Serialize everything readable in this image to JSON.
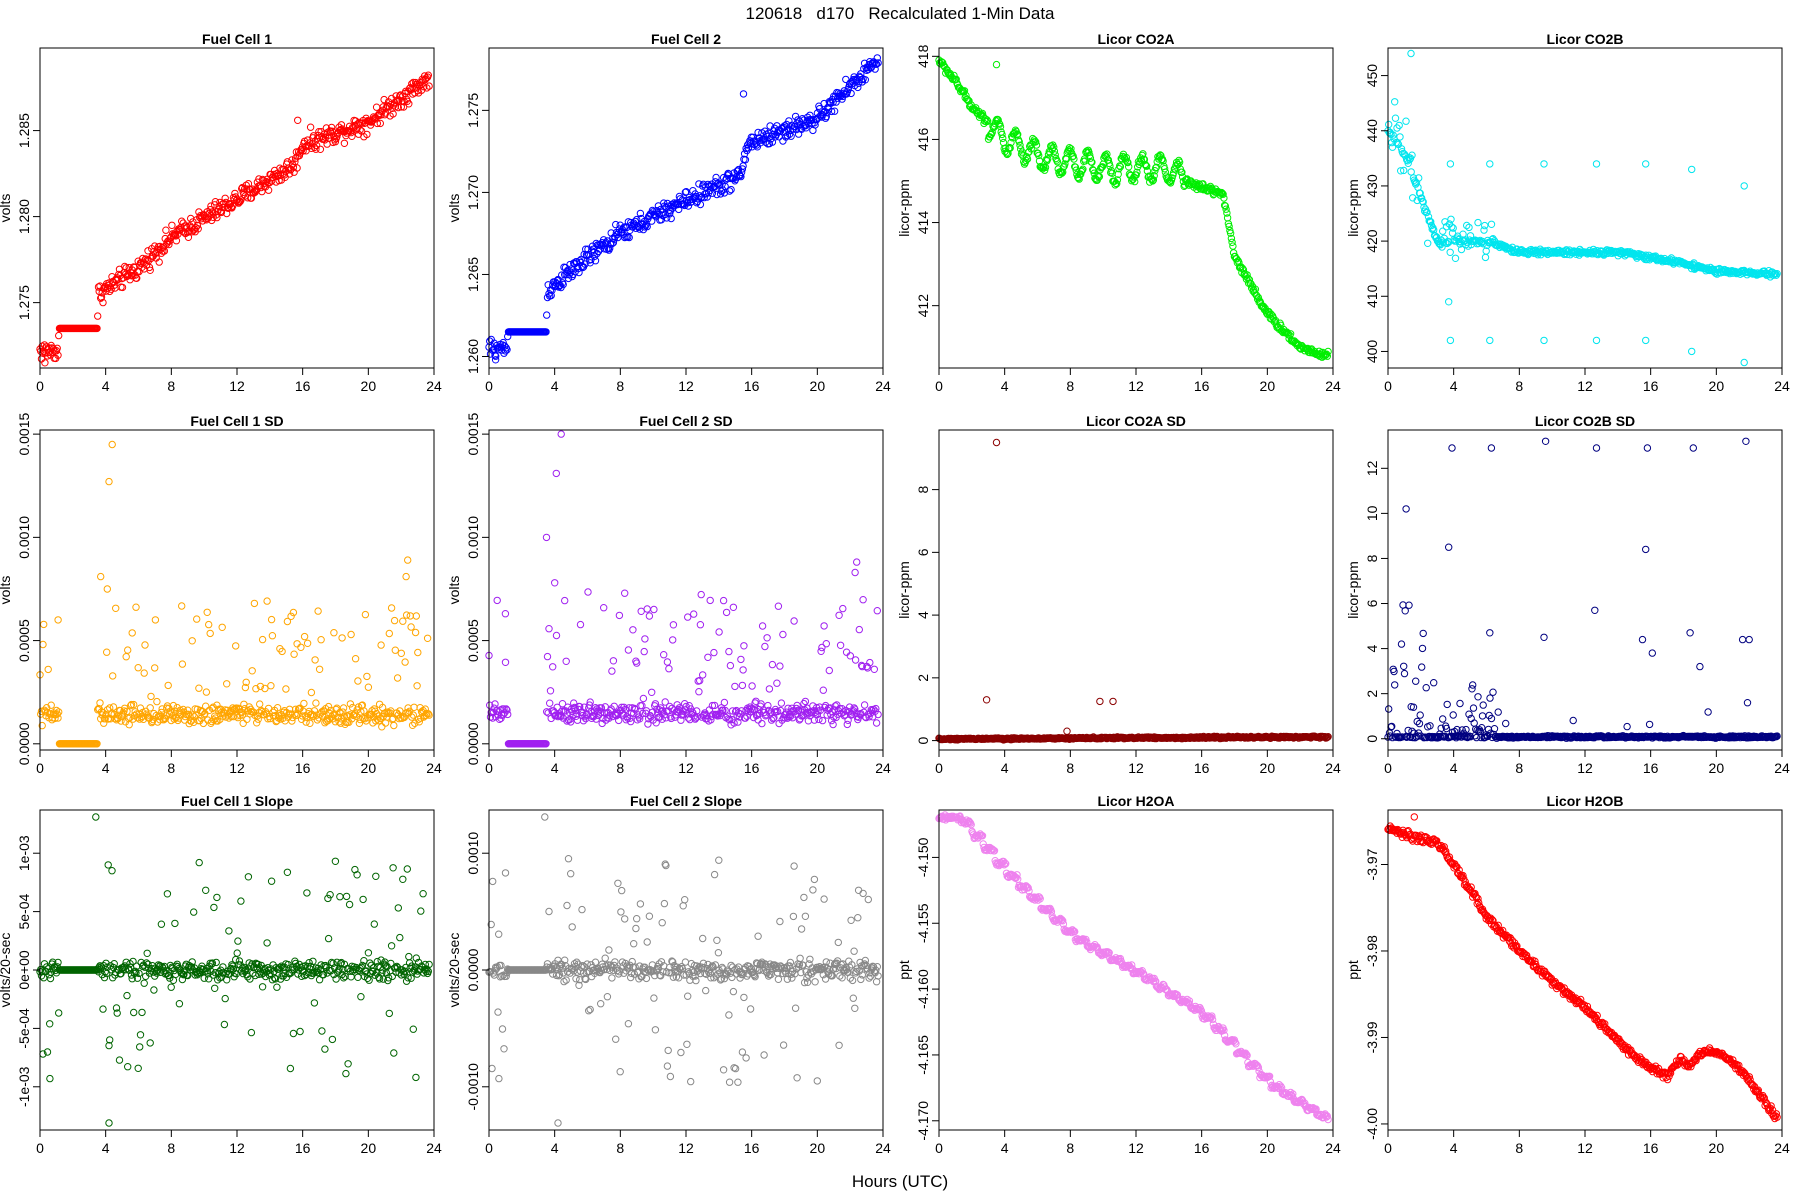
{
  "figure": {
    "title": "120618   d170   Recalculated 1-Min Data",
    "xlabel": "Hours (UTC)"
  },
  "chart_data": [
    {
      "id": "fc1",
      "type": "scatter",
      "title": "Fuel Cell 1",
      "ylabel": "volts",
      "color": "#ff0000",
      "xlim": [
        0,
        24
      ],
      "ylim": [
        1.2712,
        1.2898
      ],
      "xticks": [
        0,
        4,
        8,
        12,
        16,
        20,
        24
      ],
      "xtick_labels": [
        "0",
        "4",
        "8",
        "12",
        "16",
        "20",
        "24"
      ],
      "yticks": [
        1.275,
        1.28,
        1.285
      ],
      "ytick_labels": [
        "1.275",
        "1.280",
        "1.285"
      ],
      "gen": {
        "mode": "series",
        "noise": 0.0005,
        "knots": [
          [
            0,
            1.2722
          ],
          [
            1.1,
            1.2722
          ],
          [
            1.15,
            1.2735
          ],
          [
            3.5,
            1.2735
          ],
          [
            3.55,
            1.2755
          ],
          [
            6,
            1.277
          ],
          [
            8,
            1.2788
          ],
          [
            12,
            1.281
          ],
          [
            15.5,
            1.283
          ],
          [
            16,
            1.2842
          ],
          [
            20,
            1.2855
          ],
          [
            23.6,
            1.288
          ]
        ],
        "flat": [
          [
            1.15,
            3.5,
            1.2735
          ]
        ],
        "outliers": [
          [
            15.7,
            1.2856
          ],
          [
            0.3,
            1.2715
          ]
        ]
      }
    },
    {
      "id": "fc2",
      "type": "scatter",
      "title": "Fuel Cell 2",
      "ylabel": "volts",
      "color": "#0000ff",
      "xlim": [
        0,
        24
      ],
      "ylim": [
        1.2593,
        1.2788
      ],
      "xticks": [
        0,
        4,
        8,
        12,
        16,
        20,
        24
      ],
      "xtick_labels": [
        "0",
        "4",
        "8",
        "12",
        "16",
        "20",
        "24"
      ],
      "yticks": [
        1.26,
        1.265,
        1.27,
        1.275
      ],
      "ytick_labels": [
        "1.260",
        "1.265",
        "1.270",
        "1.275"
      ],
      "gen": {
        "mode": "series",
        "noise": 0.0005,
        "knots": [
          [
            0,
            1.2605
          ],
          [
            1.1,
            1.2605
          ],
          [
            1.15,
            1.2615
          ],
          [
            3.5,
            1.2615
          ],
          [
            3.55,
            1.264
          ],
          [
            6,
            1.266
          ],
          [
            8,
            1.2675
          ],
          [
            12,
            1.2695
          ],
          [
            15.3,
            1.271
          ],
          [
            15.8,
            1.273
          ],
          [
            20,
            1.2745
          ],
          [
            23.6,
            1.278
          ]
        ],
        "flat": [
          [
            1.15,
            3.5,
            1.2615
          ]
        ],
        "outliers": [
          [
            15.5,
            1.276
          ],
          [
            0.4,
            1.2598
          ]
        ]
      }
    },
    {
      "id": "co2a",
      "type": "scatter",
      "title": "Licor CO2A",
      "ylabel": "licor-ppm",
      "color": "#00ee00",
      "xlim": [
        0,
        24
      ],
      "ylim": [
        410.5,
        418.2
      ],
      "xticks": [
        0,
        4,
        8,
        12,
        16,
        20,
        24
      ],
      "xtick_labels": [
        "0",
        "4",
        "8",
        "12",
        "16",
        "20",
        "24"
      ],
      "yticks": [
        412,
        414,
        416,
        418
      ],
      "ytick_labels": [
        "412",
        "414",
        "416",
        "418"
      ],
      "gen": {
        "mode": "series",
        "noise": 0.08,
        "wave": 0.3,
        "wavePeriod": 1.1,
        "waveRange": [
          3,
          15
        ],
        "knots": [
          [
            0,
            417.9
          ],
          [
            1,
            417.4
          ],
          [
            2,
            416.8
          ],
          [
            4,
            416.0
          ],
          [
            6,
            415.6
          ],
          [
            10,
            415.3
          ],
          [
            14,
            415.3
          ],
          [
            15.5,
            414.9
          ],
          [
            17.3,
            414.7
          ],
          [
            18,
            413.2
          ],
          [
            20,
            411.8
          ],
          [
            22,
            411.0
          ],
          [
            23.6,
            410.8
          ]
        ],
        "outliers": [
          [
            3.5,
            417.8
          ]
        ]
      }
    },
    {
      "id": "co2b",
      "type": "scatter",
      "title": "Licor CO2B",
      "ylabel": "licor-ppm",
      "color": "#00e5ee",
      "xlim": [
        0,
        24
      ],
      "ylim": [
        397,
        455
      ],
      "xticks": [
        0,
        4,
        8,
        12,
        16,
        20,
        24
      ],
      "xtick_labels": [
        "0",
        "4",
        "8",
        "12",
        "16",
        "20",
        "24"
      ],
      "yticks": [
        400,
        410,
        420,
        430,
        440,
        450
      ],
      "ytick_labels": [
        "400",
        "410",
        "420",
        "430",
        "440",
        "450"
      ],
      "gen": {
        "mode": "series",
        "noise": 0.4,
        "scatterRanges": [
          [
            0,
            2.5,
            8
          ],
          [
            3,
            6.5,
            5
          ]
        ],
        "knots": [
          [
            0,
            440
          ],
          [
            1,
            436
          ],
          [
            2,
            428
          ],
          [
            3,
            420
          ],
          [
            6,
            420
          ],
          [
            8,
            418
          ],
          [
            14,
            418
          ],
          [
            18,
            416
          ],
          [
            20,
            414.5
          ],
          [
            23.6,
            414
          ]
        ],
        "outliers": [
          [
            3.8,
            434
          ],
          [
            6.2,
            434
          ],
          [
            9.5,
            434
          ],
          [
            12.7,
            434
          ],
          [
            15.7,
            434
          ],
          [
            18.5,
            433
          ],
          [
            21.7,
            430
          ],
          [
            3.8,
            402
          ],
          [
            6.2,
            402
          ],
          [
            9.5,
            402
          ],
          [
            12.7,
            402
          ],
          [
            15.7,
            402
          ],
          [
            18.5,
            400
          ],
          [
            21.7,
            398
          ],
          [
            1.4,
            454
          ],
          [
            3.7,
            409
          ]
        ]
      }
    },
    {
      "id": "fc1sd",
      "type": "scatter",
      "title": "Fuel Cell 1 SD",
      "ylabel": "volts",
      "color": "#ffa500",
      "xlim": [
        0,
        24
      ],
      "ylim": [
        -3e-05,
        0.00152
      ],
      "xticks": [
        0,
        4,
        8,
        12,
        16,
        20,
        24
      ],
      "xtick_labels": [
        "0",
        "4",
        "8",
        "12",
        "16",
        "20",
        "24"
      ],
      "yticks": [
        0,
        0.0005,
        0.001,
        0.0015
      ],
      "ytick_labels": [
        "0.0000",
        "0.0005",
        "0.0010",
        "0.0015"
      ],
      "gen": {
        "mode": "noise",
        "base": 0.00014,
        "spread": 4e-05,
        "spikeProb": 0.22,
        "spikeMax": 0.00055,
        "flat": [
          [
            1.15,
            3.5,
            0
          ]
        ],
        "outliers": [
          [
            4.4,
            0.00145
          ],
          [
            4.2,
            0.00127
          ],
          [
            4.1,
            0.00075
          ],
          [
            3.7,
            0.00081
          ],
          [
            22.4,
            0.00089
          ],
          [
            22.3,
            0.00081
          ],
          [
            1.1,
            0.0006
          ]
        ]
      }
    },
    {
      "id": "fc2sd",
      "type": "scatter",
      "title": "Fuel Cell 2 SD",
      "ylabel": "volts",
      "color": "#a020f0",
      "xlim": [
        0,
        24
      ],
      "ylim": [
        -3e-05,
        0.00152
      ],
      "xticks": [
        0,
        4,
        8,
        12,
        16,
        20,
        24
      ],
      "xtick_labels": [
        "0",
        "4",
        "8",
        "12",
        "16",
        "20",
        "24"
      ],
      "yticks": [
        0,
        0.0005,
        0.001,
        0.0015
      ],
      "ytick_labels": [
        "0.0000",
        "0.0005",
        "0.0010",
        "0.0015"
      ],
      "gen": {
        "mode": "noise",
        "base": 0.00015,
        "spread": 4e-05,
        "spikeProb": 0.22,
        "spikeMax": 0.00057,
        "flat": [
          [
            1.15,
            3.5,
            0
          ]
        ],
        "outliers": [
          [
            4.4,
            0.0015
          ],
          [
            4.1,
            0.00131
          ],
          [
            3.5,
            0.001
          ],
          [
            4.0,
            0.00078
          ],
          [
            22.4,
            0.00088
          ],
          [
            22.3,
            0.00083
          ],
          [
            1.0,
            0.00063
          ]
        ]
      }
    },
    {
      "id": "co2asd",
      "type": "scatter",
      "title": "Licor CO2A SD",
      "ylabel": "licor-ppm",
      "color": "#8b0000",
      "xlim": [
        0,
        24
      ],
      "ylim": [
        -0.3,
        9.9
      ],
      "xticks": [
        0,
        4,
        8,
        12,
        16,
        20,
        24
      ],
      "xtick_labels": [
        "0",
        "4",
        "8",
        "12",
        "16",
        "20",
        "24"
      ],
      "yticks": [
        0,
        2,
        4,
        6,
        8
      ],
      "ytick_labels": [
        "0",
        "2",
        "4",
        "6",
        "8"
      ],
      "gen": {
        "mode": "noise",
        "base": 0.05,
        "spread": 0.025,
        "rise": 0.07,
        "spikeProb": 0,
        "spikeMax": 0,
        "outliers": [
          [
            3.5,
            9.5
          ],
          [
            2.9,
            1.3
          ],
          [
            9.8,
            1.25
          ],
          [
            10.6,
            1.25
          ],
          [
            7.8,
            0.3
          ]
        ]
      }
    },
    {
      "id": "co2bsd",
      "type": "scatter",
      "title": "Licor CO2B SD",
      "ylabel": "licor-ppm",
      "color": "#000080",
      "xlim": [
        0,
        24
      ],
      "ylim": [
        -0.5,
        13.7
      ],
      "xticks": [
        0,
        4,
        8,
        12,
        16,
        20,
        24
      ],
      "xtick_labels": [
        "0",
        "4",
        "8",
        "12",
        "16",
        "20",
        "24"
      ],
      "yticks": [
        0,
        2,
        4,
        6,
        8,
        10,
        12
      ],
      "ytick_labels": [
        "0",
        "2",
        "4",
        "6",
        "8",
        "10",
        "12"
      ],
      "gen": {
        "mode": "noise",
        "base": 0.08,
        "spread": 0.04,
        "spikeProb": 0.03,
        "spikeMax": 1.2,
        "scatterRanges": [
          [
            0,
            2.8,
            7.5
          ],
          [
            3,
            6.5,
            2.6
          ]
        ],
        "outliers": [
          [
            3.9,
            12.9
          ],
          [
            6.3,
            12.9
          ],
          [
            9.6,
            13.2
          ],
          [
            12.7,
            12.9
          ],
          [
            15.8,
            12.9
          ],
          [
            18.6,
            12.9
          ],
          [
            21.8,
            13.2
          ],
          [
            1.1,
            10.2
          ],
          [
            3.7,
            8.5
          ],
          [
            15.7,
            8.4
          ],
          [
            12.6,
            5.7
          ],
          [
            9.5,
            4.5
          ],
          [
            18.4,
            4.7
          ],
          [
            21.6,
            4.4
          ],
          [
            22.0,
            4.4
          ],
          [
            6.2,
            4.7
          ],
          [
            15.5,
            4.4
          ],
          [
            16.1,
            3.8
          ],
          [
            19.0,
            3.2
          ],
          [
            21.9,
            1.6
          ]
        ]
      }
    },
    {
      "id": "fc1slope",
      "type": "scatter",
      "title": "Fuel Cell 1 Slope",
      "ylabel": "volts/20-sec",
      "color": "#006400",
      "xlim": [
        0,
        24
      ],
      "ylim": [
        -0.00137,
        0.00137
      ],
      "xticks": [
        0,
        4,
        8,
        12,
        16,
        20,
        24
      ],
      "xtick_labels": [
        "0",
        "4",
        "8",
        "12",
        "16",
        "20",
        "24"
      ],
      "yticks": [
        -0.001,
        -0.0005,
        0,
        0.0005,
        0.001
      ],
      "ytick_labels": [
        "-1e-03",
        "-5e-04",
        "0e+00",
        "5e-04",
        "1e-03"
      ],
      "gen": {
        "mode": "noise",
        "base": 0,
        "spread": 7e-05,
        "spikeProb": 0.22,
        "spikeMax": 0.0009,
        "signed": true,
        "flat": [
          [
            1.15,
            3.5,
            0
          ]
        ],
        "outliers": [
          [
            3.4,
            0.00131
          ],
          [
            4.2,
            -0.00131
          ],
          [
            9.7,
            0.00092
          ],
          [
            0.6,
            -0.00093
          ],
          [
            22.9,
            -0.00092
          ]
        ]
      }
    },
    {
      "id": "fc2slope",
      "type": "scatter",
      "title": "Fuel Cell 2 Slope",
      "ylabel": "volts/20-sec",
      "color": "#888888",
      "xlim": [
        0,
        24
      ],
      "ylim": [
        -0.00137,
        0.00137
      ],
      "xticks": [
        0,
        4,
        8,
        12,
        16,
        20,
        24
      ],
      "xtick_labels": [
        "0",
        "4",
        "8",
        "12",
        "16",
        "20",
        "24"
      ],
      "yticks": [
        -0.001,
        0,
        0.001
      ],
      "ytick_labels": [
        "-0.0010",
        "0.0000",
        "0.0010"
      ],
      "gen": {
        "mode": "noise",
        "base": 0,
        "spread": 7e-05,
        "spikeProb": 0.22,
        "spikeMax": 0.00095,
        "signed": true,
        "flat": [
          [
            1.15,
            3.5,
            0
          ]
        ],
        "outliers": [
          [
            3.4,
            0.00131
          ],
          [
            4.2,
            -0.00131
          ],
          [
            0.6,
            -0.00093
          ],
          [
            14.0,
            0.00094
          ],
          [
            20.0,
            -0.00095
          ]
        ]
      }
    },
    {
      "id": "h2oa",
      "type": "scatter",
      "title": "Licor H2OA",
      "ylabel": "ppt",
      "color": "#ee82ee",
      "xlim": [
        0,
        24
      ],
      "ylim": [
        -4.1707,
        -4.1464
      ],
      "xticks": [
        0,
        4,
        8,
        12,
        16,
        20,
        24
      ],
      "xtick_labels": [
        "0",
        "4",
        "8",
        "12",
        "16",
        "20",
        "24"
      ],
      "yticks": [
        -4.17,
        -4.165,
        -4.16,
        -4.155,
        -4.15
      ],
      "ytick_labels": [
        "-4.170",
        "-4.165",
        "-4.160",
        "-4.155",
        "-4.150"
      ],
      "gen": {
        "mode": "series",
        "noise": 0.00015,
        "step": 0.7,
        "knots": [
          [
            0,
            -4.147
          ],
          [
            1.2,
            -4.147
          ],
          [
            4,
            -4.1512
          ],
          [
            8,
            -4.156
          ],
          [
            12,
            -4.1588
          ],
          [
            16,
            -4.162
          ],
          [
            20,
            -4.1672
          ],
          [
            23.6,
            -4.17
          ]
        ]
      }
    },
    {
      "id": "h2ob",
      "type": "scatter",
      "title": "Licor H2OB",
      "ylabel": "ppt",
      "color": "#ff0000",
      "xlim": [
        0,
        24
      ],
      "ylim": [
        -4.0007,
        -3.9637
      ],
      "xticks": [
        0,
        4,
        8,
        12,
        16,
        20,
        24
      ],
      "xtick_labels": [
        "0",
        "4",
        "8",
        "12",
        "16",
        "20",
        "24"
      ],
      "yticks": [
        -4.0,
        -3.99,
        -3.98,
        -3.97
      ],
      "ytick_labels": [
        "-4.00",
        "-3.99",
        "-3.98",
        "-3.97"
      ],
      "gen": {
        "mode": "series",
        "noise": 0.0004,
        "knots": [
          [
            0,
            -3.9658
          ],
          [
            1,
            -3.9665
          ],
          [
            3,
            -3.9675
          ],
          [
            4,
            -3.97
          ],
          [
            6,
            -3.976
          ],
          [
            8,
            -3.98
          ],
          [
            10,
            -3.9835
          ],
          [
            12,
            -3.9865
          ],
          [
            14,
            -3.9905
          ],
          [
            16,
            -3.9935
          ],
          [
            17,
            -3.9945
          ],
          [
            17.8,
            -3.9925
          ],
          [
            18.3,
            -3.9935
          ],
          [
            19,
            -3.9918
          ],
          [
            20,
            -3.9915
          ],
          [
            21,
            -3.993
          ],
          [
            22,
            -3.995
          ],
          [
            23.6,
            -3.999
          ]
        ],
        "outliers": [
          [
            1.6,
            -3.9645
          ]
        ]
      }
    }
  ]
}
